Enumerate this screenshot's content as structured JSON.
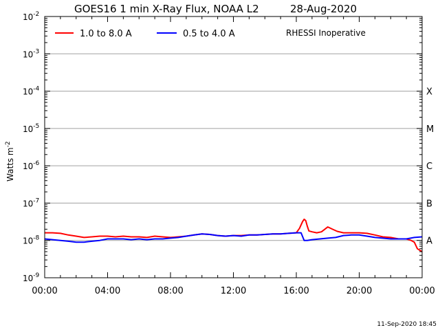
{
  "chart_data": {
    "type": "line",
    "title": "GOES16 1 min X-Ray Flux, NOAA L2",
    "date": "28-Aug-2020",
    "ylabel": "Watts m",
    "ylabel_sup": "-2",
    "y_scale": "log",
    "ylim": [
      1e-09,
      0.01
    ],
    "y_ticks": [
      {
        "base": "10",
        "exp": "-9",
        "value": 1e-09
      },
      {
        "base": "10",
        "exp": "-8",
        "value": 1e-08
      },
      {
        "base": "10",
        "exp": "-7",
        "value": 1e-07
      },
      {
        "base": "10",
        "exp": "-6",
        "value": 1e-06
      },
      {
        "base": "10",
        "exp": "-5",
        "value": 1e-05
      },
      {
        "base": "10",
        "exp": "-4",
        "value": 0.0001
      },
      {
        "base": "10",
        "exp": "-3",
        "value": 0.001
      },
      {
        "base": "10",
        "exp": "-2",
        "value": 0.01
      }
    ],
    "x_ticks": [
      "00:00",
      "04:00",
      "08:00",
      "12:00",
      "16:00",
      "20:00",
      "00:00"
    ],
    "x_tick_hours": [
      0,
      4,
      8,
      12,
      16,
      20,
      24
    ],
    "xlim_hours": [
      0,
      24
    ],
    "flare_classes": [
      {
        "label": "A",
        "value": 1e-08
      },
      {
        "label": "B",
        "value": 1e-07
      },
      {
        "label": "C",
        "value": 1e-06
      },
      {
        "label": "M",
        "value": 1e-05
      },
      {
        "label": "X",
        "value": 0.0001
      }
    ],
    "grid": "horizontal at each decade",
    "legend_placement": "top-left",
    "annotation": "RHESSI Inoperative",
    "footer": "11-Sep-2020 18:45",
    "series": [
      {
        "name": "1.0 to 8.0 A",
        "color": "#ff0000",
        "x_hours": [
          0,
          0.5,
          1,
          1.5,
          2,
          2.5,
          3,
          3.5,
          4,
          4.5,
          5,
          5.5,
          6,
          6.5,
          7,
          7.5,
          8,
          8.5,
          9,
          9.5,
          10,
          10.5,
          11,
          11.5,
          12,
          12.5,
          13,
          13.5,
          14,
          14.5,
          15,
          15.5,
          16,
          16.2,
          16.4,
          16.5,
          16.6,
          16.7,
          16.8,
          17,
          17.3,
          17.6,
          18,
          18.3,
          18.6,
          19,
          19.5,
          20,
          20.5,
          21,
          21.5,
          22,
          22.5,
          23,
          23.3,
          23.5,
          23.7,
          24
        ],
        "y": [
          1.6e-08,
          1.6e-08,
          1.55e-08,
          1.4e-08,
          1.3e-08,
          1.2e-08,
          1.25e-08,
          1.3e-08,
          1.3e-08,
          1.25e-08,
          1.3e-08,
          1.25e-08,
          1.25e-08,
          1.2e-08,
          1.3e-08,
          1.25e-08,
          1.2e-08,
          1.25e-08,
          1.3e-08,
          1.4e-08,
          1.5e-08,
          1.45e-08,
          1.35e-08,
          1.3e-08,
          1.35e-08,
          1.35e-08,
          1.4e-08,
          1.4e-08,
          1.45e-08,
          1.5e-08,
          1.5e-08,
          1.55e-08,
          1.6e-08,
          2.1e-08,
          3.2e-08,
          3.7e-08,
          3.4e-08,
          2.4e-08,
          1.8e-08,
          1.7e-08,
          1.6e-08,
          1.7e-08,
          2.3e-08,
          2e-08,
          1.75e-08,
          1.6e-08,
          1.6e-08,
          1.6e-08,
          1.55e-08,
          1.4e-08,
          1.25e-08,
          1.2e-08,
          1.1e-08,
          1.1e-08,
          1e-08,
          9e-09,
          6e-09,
          5e-09
        ]
      },
      {
        "name": "0.5 to 4.0 A",
        "color": "#0000ff",
        "x_hours": [
          0,
          0.5,
          1,
          1.5,
          2,
          2.5,
          3,
          3.5,
          4,
          4.5,
          5,
          5.5,
          6,
          6.5,
          7,
          7.5,
          8,
          8.5,
          9,
          9.5,
          10,
          10.5,
          11,
          11.5,
          12,
          12.5,
          13,
          13.5,
          14,
          14.5,
          15,
          15.5,
          16,
          16.3,
          16.5,
          16.7,
          17,
          17.5,
          18,
          18.5,
          19,
          19.5,
          20,
          20.5,
          21,
          21.5,
          22,
          22.5,
          23,
          23.5,
          24
        ],
        "y": [
          1.1e-08,
          1.05e-08,
          1e-08,
          9.5e-09,
          9e-09,
          9e-09,
          9.5e-09,
          1e-08,
          1.1e-08,
          1.1e-08,
          1.1e-08,
          1.05e-08,
          1.1e-08,
          1.05e-08,
          1.1e-08,
          1.1e-08,
          1.15e-08,
          1.2e-08,
          1.3e-08,
          1.4e-08,
          1.5e-08,
          1.45e-08,
          1.35e-08,
          1.3e-08,
          1.35e-08,
          1.3e-08,
          1.4e-08,
          1.4e-08,
          1.45e-08,
          1.5e-08,
          1.5e-08,
          1.55e-08,
          1.6e-08,
          1.6e-08,
          1e-08,
          1e-08,
          1.05e-08,
          1.1e-08,
          1.15e-08,
          1.2e-08,
          1.35e-08,
          1.4e-08,
          1.4e-08,
          1.3e-08,
          1.2e-08,
          1.15e-08,
          1.1e-08,
          1.1e-08,
          1.1e-08,
          1.2e-08,
          1.25e-08
        ]
      }
    ]
  }
}
